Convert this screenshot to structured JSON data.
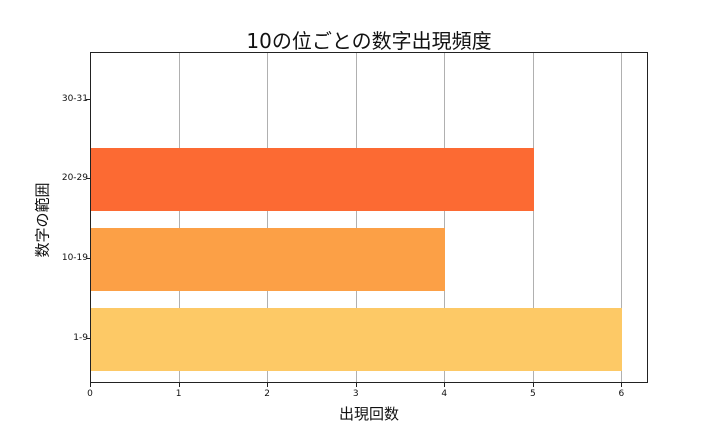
{
  "chart_data": {
    "type": "bar",
    "orientation": "horizontal",
    "title": "10の位ごとの数字出現頻度",
    "xlabel": "出現回数",
    "ylabel": "数字の範囲",
    "categories": [
      "1-9",
      "10-19",
      "20-29",
      "30-31"
    ],
    "values": [
      6,
      4,
      5,
      0
    ],
    "colors": [
      "#fdc966",
      "#fca046",
      "#fc6a33",
      "#ffffff"
    ],
    "xlim": [
      0,
      6.3
    ],
    "xticks": [
      "0",
      "1",
      "2",
      "3",
      "4",
      "5",
      "6"
    ],
    "grid": "x",
    "legend": null
  }
}
